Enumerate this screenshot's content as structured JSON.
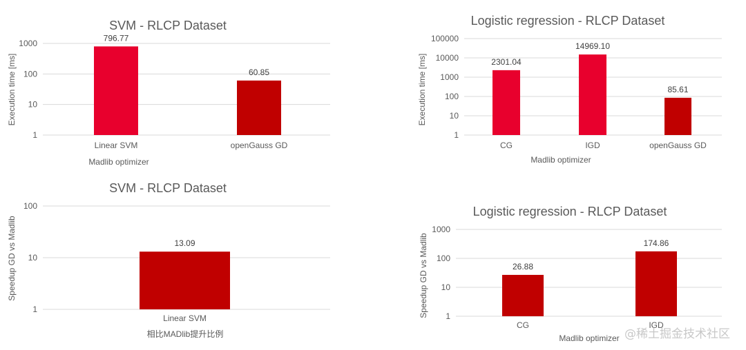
{
  "colors": {
    "bright_red": "#e8002d",
    "dark_red": "#c00000",
    "grid": "#d9d9d9",
    "text": "#595959"
  },
  "watermark": "@稀土掘金技术社区",
  "chart_data": [
    {
      "type": "bar",
      "title": "SVM - RLCP Dataset",
      "xlabel": "Madlib optimizer",
      "ylabel": "Execution time [ms]",
      "yscale": "log",
      "ylim": [
        1,
        1000
      ],
      "yticks": [
        "1",
        "10",
        "100",
        "1000"
      ],
      "categories": [
        "Linear SVM",
        "openGauss GD"
      ],
      "values": [
        796.77,
        60.85
      ],
      "labels": [
        "796.77",
        "60.85"
      ],
      "bar_colors": [
        "#e8002d",
        "#c00000"
      ],
      "grid": true
    },
    {
      "type": "bar",
      "title": "Logistic regression - RLCP Dataset",
      "xlabel": "Madlib optimizer",
      "ylabel": "Execution time [ms]",
      "yscale": "log",
      "ylim": [
        1,
        100000
      ],
      "yticks": [
        "1",
        "10",
        "100",
        "1000",
        "10000",
        "100000"
      ],
      "categories": [
        "CG",
        "IGD",
        "openGauss GD"
      ],
      "values": [
        2301.04,
        14969.1,
        85.61
      ],
      "labels": [
        "2301.04",
        "14969.10",
        "85.61"
      ],
      "bar_colors": [
        "#e8002d",
        "#e8002d",
        "#c00000"
      ],
      "grid": true
    },
    {
      "type": "bar",
      "title": "SVM - RLCP Dataset",
      "xlabel": "相比MADlib提升比例",
      "ylabel": "Speedup GD vs Madlib",
      "yscale": "log",
      "ylim": [
        1,
        100
      ],
      "yticks": [
        "1",
        "10",
        "100"
      ],
      "categories": [
        "Linear SVM"
      ],
      "values": [
        13.09
      ],
      "labels": [
        "13.09"
      ],
      "bar_colors": [
        "#c00000"
      ],
      "grid": true
    },
    {
      "type": "bar",
      "title": "Logistic regression - RLCP Dataset",
      "xlabel": "Madlib optimizer",
      "ylabel": "Speedup GD vs Madlib",
      "yscale": "log",
      "ylim": [
        1,
        1000
      ],
      "yticks": [
        "1",
        "10",
        "100",
        "1000"
      ],
      "categories": [
        "CG",
        "IGD"
      ],
      "values": [
        26.88,
        174.86
      ],
      "labels": [
        "26.88",
        "174.86"
      ],
      "bar_colors": [
        "#c00000",
        "#c00000"
      ],
      "grid": true
    }
  ]
}
